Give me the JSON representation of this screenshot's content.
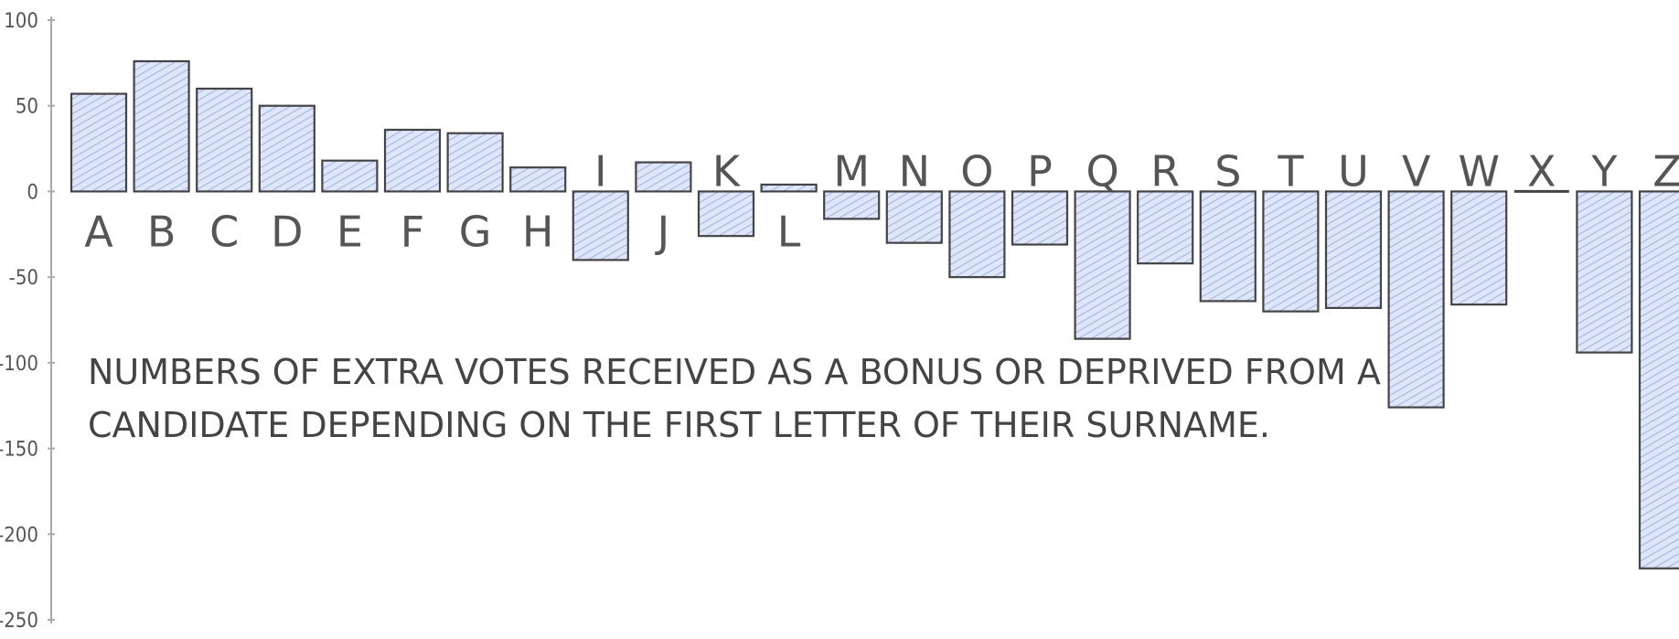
{
  "chart_data": {
    "type": "bar",
    "title": "",
    "xlabel": "",
    "ylabel": "",
    "ylim": [
      -250,
      100
    ],
    "yticks": [
      100,
      50,
      0,
      -50,
      -100,
      -150,
      -200,
      -250
    ],
    "grid": false,
    "legend": "none",
    "categories": [
      "A",
      "B",
      "C",
      "D",
      "E",
      "F",
      "G",
      "H",
      "I",
      "J",
      "K",
      "L",
      "M",
      "N",
      "O",
      "P",
      "Q",
      "R",
      "S",
      "T",
      "U",
      "V",
      "W",
      "X",
      "Y",
      "Z"
    ],
    "series": [
      {
        "values": [
          57,
          76,
          60,
          50,
          18,
          36,
          34,
          14,
          -40,
          17,
          -26,
          4,
          -16,
          -30,
          -50,
          -31,
          -86,
          -42,
          -64,
          -70,
          -68,
          -126,
          -66,
          0,
          -94,
          -220
        ]
      }
    ],
    "annotation": {
      "lines": [
        "NUMBERS OF EXTRA VOTES RECEIVED AS A BONUS OR DEPRIVED FROM A",
        "CANDIDATE DEPENDING ON THE FIRST LETTER OF THEIR SURNAME."
      ]
    },
    "colors": {
      "bar_fill": "#b7c8f2",
      "bar_hatch": "#7d9ae6",
      "bar_stroke": "#444444",
      "axis": "#aaaaaa",
      "text": "#555555"
    }
  }
}
